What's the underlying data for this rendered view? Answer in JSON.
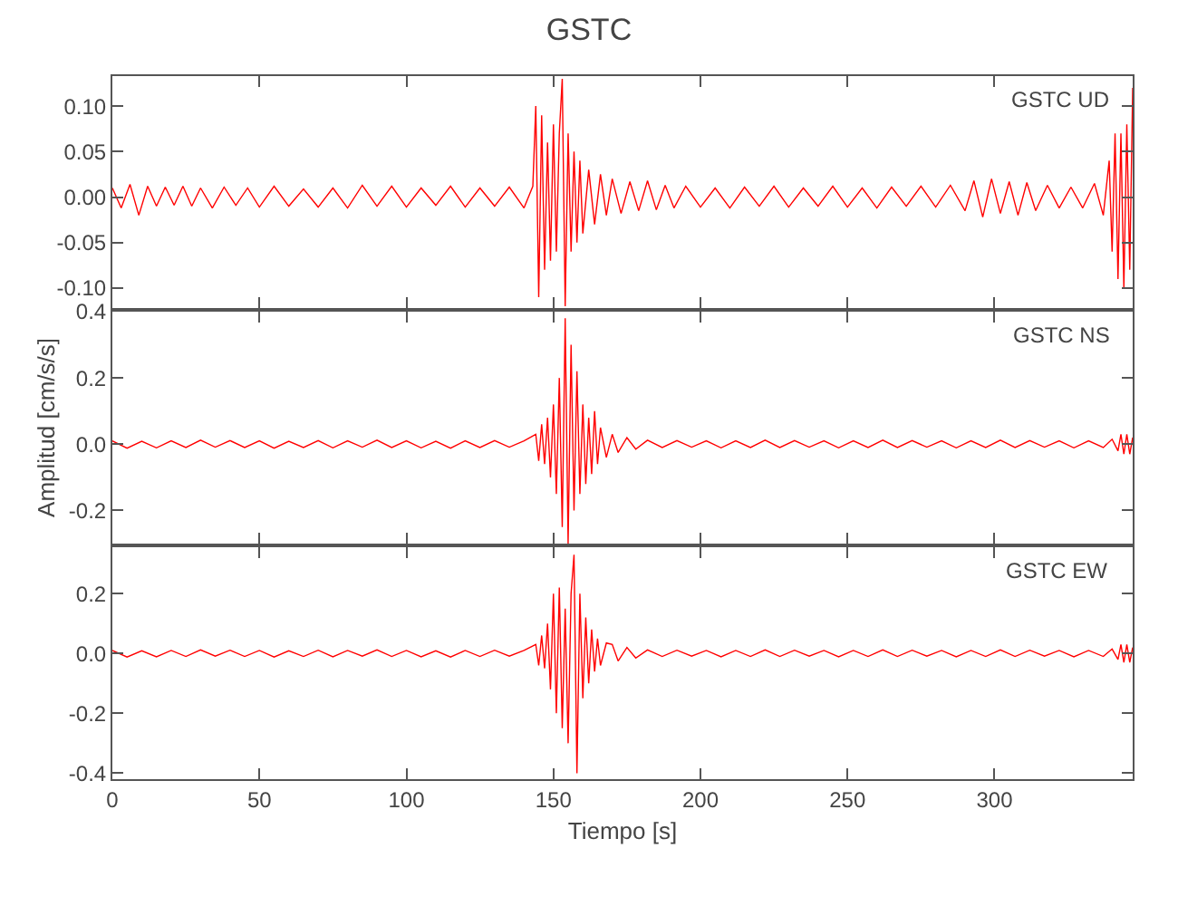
{
  "chart_data": [
    {
      "type": "line",
      "title": "GSTC",
      "annotations": [
        "GSTC UD"
      ],
      "xlim": [
        0,
        347
      ],
      "xticks": [
        0,
        50,
        100,
        150,
        200,
        250,
        300
      ],
      "ylim": [
        -0.122,
        0.133
      ],
      "yticks": [
        {
          "value": -0.1,
          "label": "-0.10"
        },
        {
          "value": -0.05,
          "label": "-0.05"
        },
        {
          "value": 0,
          "label": "0.00"
        },
        {
          "value": 0.05,
          "label": "0.05"
        },
        {
          "value": 0.1,
          "label": "0.10"
        }
      ],
      "tick_labels": "y",
      "series": [
        {
          "color": "#ff0000",
          "x": [
            0,
            3,
            6,
            9,
            12,
            15,
            18,
            21,
            24,
            27,
            30,
            34,
            38,
            42,
            46,
            50,
            55,
            60,
            65,
            70,
            75,
            80,
            85,
            90,
            95,
            100,
            105,
            110,
            115,
            120,
            125,
            130,
            135,
            140,
            143,
            144,
            145,
            146,
            147,
            148,
            149,
            150,
            151,
            152,
            153,
            154,
            155,
            156,
            157,
            158,
            159,
            160,
            162,
            164,
            166,
            168,
            170,
            173,
            176,
            179,
            182,
            185,
            188,
            191,
            195,
            200,
            205,
            210,
            215,
            220,
            225,
            230,
            235,
            240,
            245,
            250,
            255,
            260,
            265,
            270,
            275,
            280,
            285,
            290,
            293,
            296,
            299,
            302,
            305,
            308,
            311,
            314,
            318,
            322,
            326,
            330,
            334,
            337,
            339,
            340,
            341,
            342,
            343,
            344,
            345,
            346,
            347
          ],
          "values": [
            0.01,
            -0.012,
            0.014,
            -0.02,
            0.012,
            -0.01,
            0.011,
            -0.009,
            0.012,
            -0.01,
            0.01,
            -0.012,
            0.011,
            -0.009,
            0.01,
            -0.011,
            0.012,
            -0.01,
            0.009,
            -0.011,
            0.01,
            -0.012,
            0.013,
            -0.01,
            0.012,
            -0.011,
            0.01,
            -0.009,
            0.012,
            -0.011,
            0.01,
            -0.01,
            0.011,
            -0.012,
            0.012,
            0.1,
            -0.11,
            0.09,
            -0.08,
            0.06,
            -0.07,
            0.08,
            -0.06,
            0.07,
            0.13,
            -0.12,
            0.07,
            -0.06,
            0.05,
            -0.05,
            0.04,
            -0.04,
            0.03,
            -0.03,
            0.025,
            -0.02,
            0.02,
            -0.018,
            0.017,
            -0.015,
            0.018,
            -0.014,
            0.013,
            -0.012,
            0.012,
            -0.011,
            0.01,
            -0.012,
            0.011,
            -0.01,
            0.012,
            -0.011,
            0.01,
            -0.01,
            0.012,
            -0.011,
            0.01,
            -0.012,
            0.011,
            -0.01,
            0.012,
            -0.011,
            0.013,
            -0.015,
            0.018,
            -0.022,
            0.02,
            -0.018,
            0.017,
            -0.02,
            0.016,
            -0.015,
            0.013,
            -0.012,
            0.011,
            -0.012,
            0.015,
            -0.02,
            0.04,
            -0.06,
            0.07,
            -0.09,
            0.07,
            -0.1,
            0.08,
            -0.08,
            0.12
          ]
        }
      ]
    },
    {
      "type": "line",
      "ylabel": "Amplitud [cm/s/s]",
      "annotations": [
        "GSTC NS"
      ],
      "xlim": [
        0,
        347
      ],
      "xticks": [
        0,
        50,
        100,
        150,
        200,
        250,
        300
      ],
      "ylim": [
        -0.3,
        0.4
      ],
      "yticks": [
        {
          "value": -0.2,
          "label": "-0.2"
        },
        {
          "value": 0,
          "label": "0.0"
        },
        {
          "value": 0.2,
          "label": "0.2"
        },
        {
          "value": 0.4,
          "label": "0.4"
        }
      ],
      "tick_labels": "y",
      "series": [
        {
          "color": "#ff0000",
          "x": [
            0,
            5,
            10,
            15,
            20,
            25,
            30,
            35,
            40,
            45,
            50,
            55,
            60,
            65,
            70,
            75,
            80,
            85,
            90,
            95,
            100,
            105,
            110,
            115,
            120,
            125,
            130,
            135,
            140,
            144,
            145,
            146,
            147,
            148,
            149,
            150,
            151,
            152,
            153,
            154,
            155,
            156,
            157,
            158,
            159,
            160,
            161,
            162,
            163,
            164,
            165,
            166,
            168,
            170,
            172,
            175,
            178,
            182,
            187,
            192,
            197,
            202,
            207,
            212,
            217,
            222,
            227,
            232,
            237,
            242,
            247,
            252,
            257,
            262,
            267,
            272,
            277,
            282,
            287,
            292,
            297,
            302,
            307,
            312,
            317,
            322,
            327,
            332,
            337,
            340,
            342,
            343,
            344,
            345,
            346,
            347
          ],
          "values": [
            0.01,
            -0.012,
            0.009,
            -0.011,
            0.01,
            -0.01,
            0.012,
            -0.009,
            0.011,
            -0.01,
            0.01,
            -0.012,
            0.009,
            -0.01,
            0.011,
            -0.011,
            0.01,
            -0.009,
            0.012,
            -0.01,
            0.01,
            -0.011,
            0.009,
            -0.012,
            0.01,
            -0.01,
            0.011,
            -0.009,
            0.01,
            0.03,
            -0.05,
            0.06,
            -0.06,
            0.08,
            -0.1,
            0.12,
            -0.15,
            0.2,
            -0.25,
            0.38,
            -0.3,
            0.3,
            -0.2,
            0.22,
            -0.15,
            0.12,
            -0.12,
            0.08,
            -0.09,
            0.1,
            -0.06,
            0.05,
            -0.04,
            0.03,
            -0.025,
            0.02,
            -0.015,
            0.012,
            -0.01,
            0.011,
            -0.009,
            0.01,
            -0.011,
            0.01,
            -0.01,
            0.012,
            -0.01,
            0.011,
            -0.009,
            0.01,
            -0.011,
            0.01,
            -0.01,
            0.012,
            -0.01,
            0.011,
            -0.009,
            0.01,
            -0.011,
            0.01,
            -0.01,
            0.012,
            -0.01,
            0.011,
            -0.009,
            0.01,
            -0.011,
            0.01,
            -0.01,
            0.015,
            -0.02,
            0.03,
            -0.03,
            0.03,
            -0.03,
            0.02
          ]
        }
      ]
    },
    {
      "type": "line",
      "xlabel": "Tiempo [s]",
      "annotations": [
        "GSTC EW"
      ],
      "xlim": [
        0,
        347
      ],
      "xticks": [
        0,
        50,
        100,
        150,
        200,
        250,
        300
      ],
      "ylim": [
        -0.42,
        0.355
      ],
      "yticks": [
        {
          "value": -0.4,
          "label": "-0.4"
        },
        {
          "value": -0.2,
          "label": "-0.2"
        },
        {
          "value": 0,
          "label": "0.0"
        },
        {
          "value": 0.2,
          "label": "0.2"
        }
      ],
      "series": [
        {
          "color": "#ff0000",
          "x": [
            0,
            5,
            10,
            15,
            20,
            25,
            30,
            35,
            40,
            45,
            50,
            55,
            60,
            65,
            70,
            75,
            80,
            85,
            90,
            95,
            100,
            105,
            110,
            115,
            120,
            125,
            130,
            135,
            140,
            144,
            145,
            146,
            147,
            148,
            149,
            150,
            151,
            152,
            153,
            154,
            155,
            156,
            157,
            158,
            159,
            160,
            161,
            162,
            163,
            164,
            165,
            166,
            168,
            170,
            172,
            175,
            178,
            182,
            187,
            192,
            197,
            202,
            207,
            212,
            217,
            222,
            227,
            232,
            237,
            242,
            247,
            252,
            257,
            262,
            267,
            272,
            277,
            282,
            287,
            292,
            297,
            302,
            307,
            312,
            317,
            322,
            327,
            332,
            337,
            340,
            342,
            343,
            344,
            345,
            346,
            347
          ],
          "values": [
            0.01,
            -0.012,
            0.009,
            -0.011,
            0.01,
            -0.01,
            0.012,
            -0.009,
            0.011,
            -0.01,
            0.01,
            -0.012,
            0.009,
            -0.01,
            0.011,
            -0.011,
            0.01,
            -0.009,
            0.012,
            -0.01,
            0.01,
            -0.011,
            0.009,
            -0.012,
            0.01,
            -0.01,
            0.011,
            -0.009,
            0.01,
            0.03,
            -0.04,
            0.06,
            -0.05,
            0.1,
            -0.12,
            0.2,
            -0.2,
            0.22,
            -0.25,
            0.15,
            -0.3,
            0.2,
            0.33,
            -0.4,
            0.2,
            -0.15,
            0.12,
            -0.1,
            0.08,
            -0.06,
            0.05,
            -0.04,
            0.035,
            0.03,
            -0.025,
            0.02,
            -0.015,
            0.012,
            -0.01,
            0.011,
            -0.009,
            0.01,
            -0.011,
            0.01,
            -0.01,
            0.012,
            -0.01,
            0.011,
            -0.009,
            0.01,
            -0.011,
            0.01,
            -0.01,
            0.012,
            -0.01,
            0.011,
            -0.009,
            0.01,
            -0.011,
            0.01,
            -0.01,
            0.012,
            -0.01,
            0.011,
            -0.009,
            0.01,
            -0.011,
            0.01,
            -0.01,
            0.015,
            -0.02,
            0.03,
            -0.03,
            0.03,
            -0.03,
            0.02
          ]
        }
      ]
    }
  ]
}
